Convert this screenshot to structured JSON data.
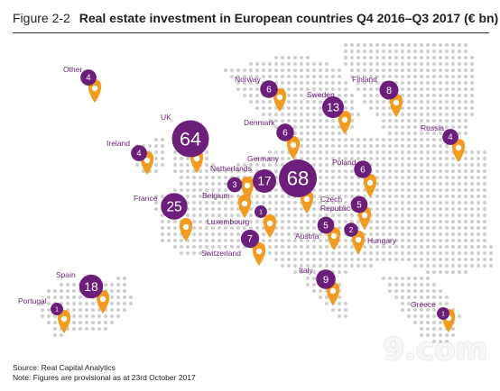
{
  "title": {
    "figure": "Figure 2-2",
    "text": "Real estate investment in European countries Q4 2016–Q3 2017 (€ bn)"
  },
  "footer": {
    "source": "Source: Real Capital Analytics",
    "note": "Note: Figures are provisional as at 23rd October 2017"
  },
  "watermark": "9.com",
  "colors": {
    "purple": "#6b1e7a",
    "orange": "#f29b1f",
    "dots": "#cfcfcf"
  },
  "chart_data": {
    "type": "map",
    "unit": "€ bn",
    "points": [
      {
        "name": "Other",
        "value": 4
      },
      {
        "name": "UK",
        "value": 64
      },
      {
        "name": "Ireland",
        "value": 4
      },
      {
        "name": "Norway",
        "value": 6
      },
      {
        "name": "Sweden",
        "value": 13
      },
      {
        "name": "Finland",
        "value": 8
      },
      {
        "name": "Denmark",
        "value": 6
      },
      {
        "name": "Russia",
        "value": 4
      },
      {
        "name": "Netherlands",
        "value": 17
      },
      {
        "name": "Germany",
        "value": 68
      },
      {
        "name": "Poland",
        "value": 6
      },
      {
        "name": "Belgium",
        "value": 3
      },
      {
        "name": "France",
        "value": 25
      },
      {
        "name": "Czech Republic",
        "value": 5
      },
      {
        "name": "Luxembourg",
        "value": 1
      },
      {
        "name": "Austria",
        "value": 5
      },
      {
        "name": "Hungary",
        "value": 2
      },
      {
        "name": "Switzerland",
        "value": 7
      },
      {
        "name": "Spain",
        "value": 18
      },
      {
        "name": "Italy",
        "value": 9
      },
      {
        "name": "Portugal",
        "value": 1
      },
      {
        "name": "Greece",
        "value": 1
      }
    ]
  }
}
